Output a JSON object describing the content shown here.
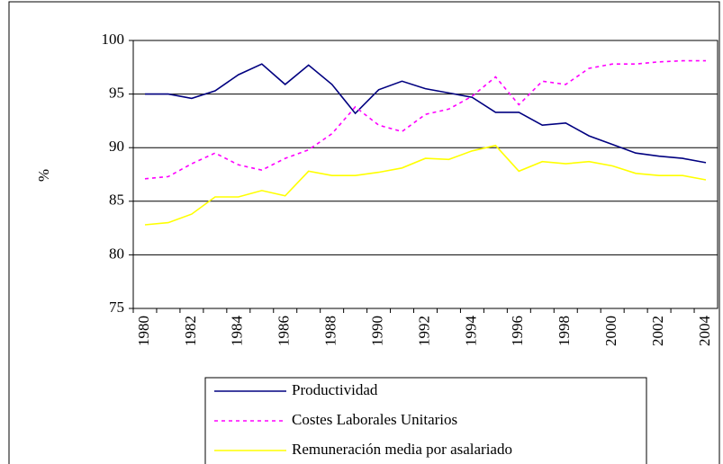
{
  "chart_data": {
    "type": "line",
    "y_label": "%",
    "categories": [
      "1980",
      null,
      "1982",
      null,
      "1984",
      null,
      "1986",
      null,
      "1988",
      null,
      "1990",
      null,
      "1992",
      null,
      "1994",
      null,
      "1996",
      null,
      "1998",
      null,
      "2000",
      null,
      "2002",
      null,
      "2004"
    ],
    "ylim": [
      75,
      100
    ],
    "yticks": [
      75,
      80,
      85,
      90,
      95,
      100
    ],
    "grid": true,
    "series": [
      {
        "name": "Productividad",
        "color": "#000080",
        "dash": false,
        "values": [
          95.0,
          95.0,
          94.6,
          95.3,
          96.8,
          97.8,
          95.9,
          97.7,
          95.9,
          93.2,
          95.4,
          96.2,
          95.5,
          95.1,
          94.7,
          93.3,
          93.3,
          92.1,
          92.3,
          91.1,
          90.3,
          89.5,
          89.2,
          89.0,
          88.6
        ]
      },
      {
        "name": "Costes Laborales Unitarios",
        "color": "#ff00ff",
        "dash": true,
        "values": [
          87.1,
          87.3,
          88.5,
          89.5,
          88.4,
          87.9,
          89.0,
          89.8,
          91.3,
          93.8,
          92.1,
          91.5,
          93.1,
          93.6,
          94.8,
          96.6,
          94.0,
          96.2,
          95.9,
          97.4,
          97.8,
          97.8,
          98.0,
          98.1,
          98.1
        ]
      },
      {
        "name": "Remuneración media por asalariado",
        "color": "#ffff00",
        "dash": false,
        "values": [
          82.8,
          83.0,
          83.8,
          85.4,
          85.4,
          86.0,
          85.5,
          87.8,
          87.4,
          87.4,
          87.7,
          88.1,
          89.0,
          88.9,
          89.7,
          90.2,
          87.8,
          88.7,
          88.5,
          88.7,
          88.3,
          87.6,
          87.4,
          87.4,
          87.0
        ]
      }
    ]
  }
}
